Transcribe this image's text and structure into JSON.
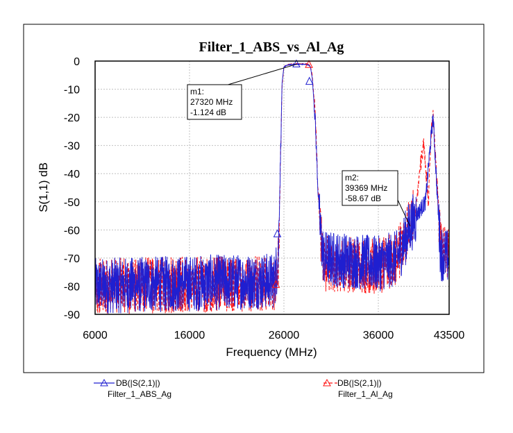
{
  "chart_data": {
    "type": "line",
    "title": "Filter_1_ABS_vs_Al_Ag",
    "xlabel": "Frequency (MHz)",
    "ylabel": "S(1,1) dB",
    "xlim": [
      6000,
      43500
    ],
    "ylim": [
      -90,
      0
    ],
    "x_ticks": [
      6000,
      16000,
      26000,
      36000,
      43500
    ],
    "y_ticks": [
      0,
      -10,
      -20,
      -30,
      -40,
      -50,
      -60,
      -70,
      -80,
      -90
    ],
    "x_tick_labels": [
      "6000",
      "16000",
      "26000",
      "36000",
      "43500"
    ],
    "y_tick_labels": [
      "0",
      "-10",
      "-20",
      "-30",
      "-40",
      "-50",
      "-60",
      "-70",
      "-80",
      "-90"
    ],
    "grid": true,
    "series": [
      {
        "name": "DB(|S(2,1)|)",
        "source": "Filter_1_ABS_Ag",
        "color": "#1f1fd0",
        "marker": "triangle",
        "envelope": [
          [
            6000,
            -80
          ],
          [
            25000,
            -78
          ],
          [
            25400,
            -70
          ],
          [
            25600,
            -40
          ],
          [
            25800,
            -8
          ],
          [
            26000,
            -2
          ],
          [
            26500,
            -1.3
          ],
          [
            27320,
            -1.124
          ],
          [
            28500,
            -1.2
          ],
          [
            28800,
            -2
          ],
          [
            29000,
            -6
          ],
          [
            29300,
            -20
          ],
          [
            29600,
            -45
          ],
          [
            29900,
            -62
          ],
          [
            30200,
            -70
          ],
          [
            36000,
            -72
          ],
          [
            38000,
            -70
          ],
          [
            39369,
            -58.67
          ],
          [
            40000,
            -55
          ],
          [
            41000,
            -50
          ],
          [
            41500,
            -30
          ],
          [
            41800,
            -20
          ],
          [
            42200,
            -45
          ],
          [
            42600,
            -68
          ],
          [
            43500,
            -70
          ]
        ]
      },
      {
        "name": "DB(|S(2,1)|)",
        "source": "Filter_1_Al_Ag",
        "color": "#ff1010",
        "marker": "triangle",
        "envelope": [
          [
            6000,
            -80
          ],
          [
            25000,
            -79
          ],
          [
            25400,
            -72
          ],
          [
            25600,
            -42
          ],
          [
            25800,
            -9
          ],
          [
            26000,
            -2
          ],
          [
            26500,
            -1.2
          ],
          [
            27300,
            -1.0
          ],
          [
            28500,
            -1.0
          ],
          [
            28800,
            -1.6
          ],
          [
            29000,
            -5
          ],
          [
            29300,
            -18
          ],
          [
            29600,
            -44
          ],
          [
            29900,
            -62
          ],
          [
            30200,
            -72
          ],
          [
            36000,
            -73
          ],
          [
            38000,
            -70
          ],
          [
            39369,
            -58
          ],
          [
            40000,
            -52
          ],
          [
            40400,
            -38
          ],
          [
            40800,
            -30
          ],
          [
            41300,
            -50
          ],
          [
            41600,
            -25
          ],
          [
            41800,
            -18
          ],
          [
            42200,
            -42
          ],
          [
            42600,
            -66
          ],
          [
            43500,
            -70
          ]
        ]
      }
    ],
    "markers": [
      {
        "label": "m1:",
        "freq_text": "27320 MHz",
        "value_text": "-1.124 dB",
        "freq": 27320,
        "value": -1.124
      },
      {
        "label": "m2:",
        "freq_text": "39369 MHz",
        "value_text": "-58.67 dB",
        "freq": 39369,
        "value": -58.67
      }
    ],
    "legend": [
      {
        "line1": "DB(|S(2,1)|)",
        "line2": "Filter_1_ABS_Ag",
        "color": "#1f1fd0"
      },
      {
        "line1": "DB(|S(2,1)|)",
        "line2": "Filter_1_Al_Ag",
        "color": "#ff1010"
      }
    ]
  }
}
